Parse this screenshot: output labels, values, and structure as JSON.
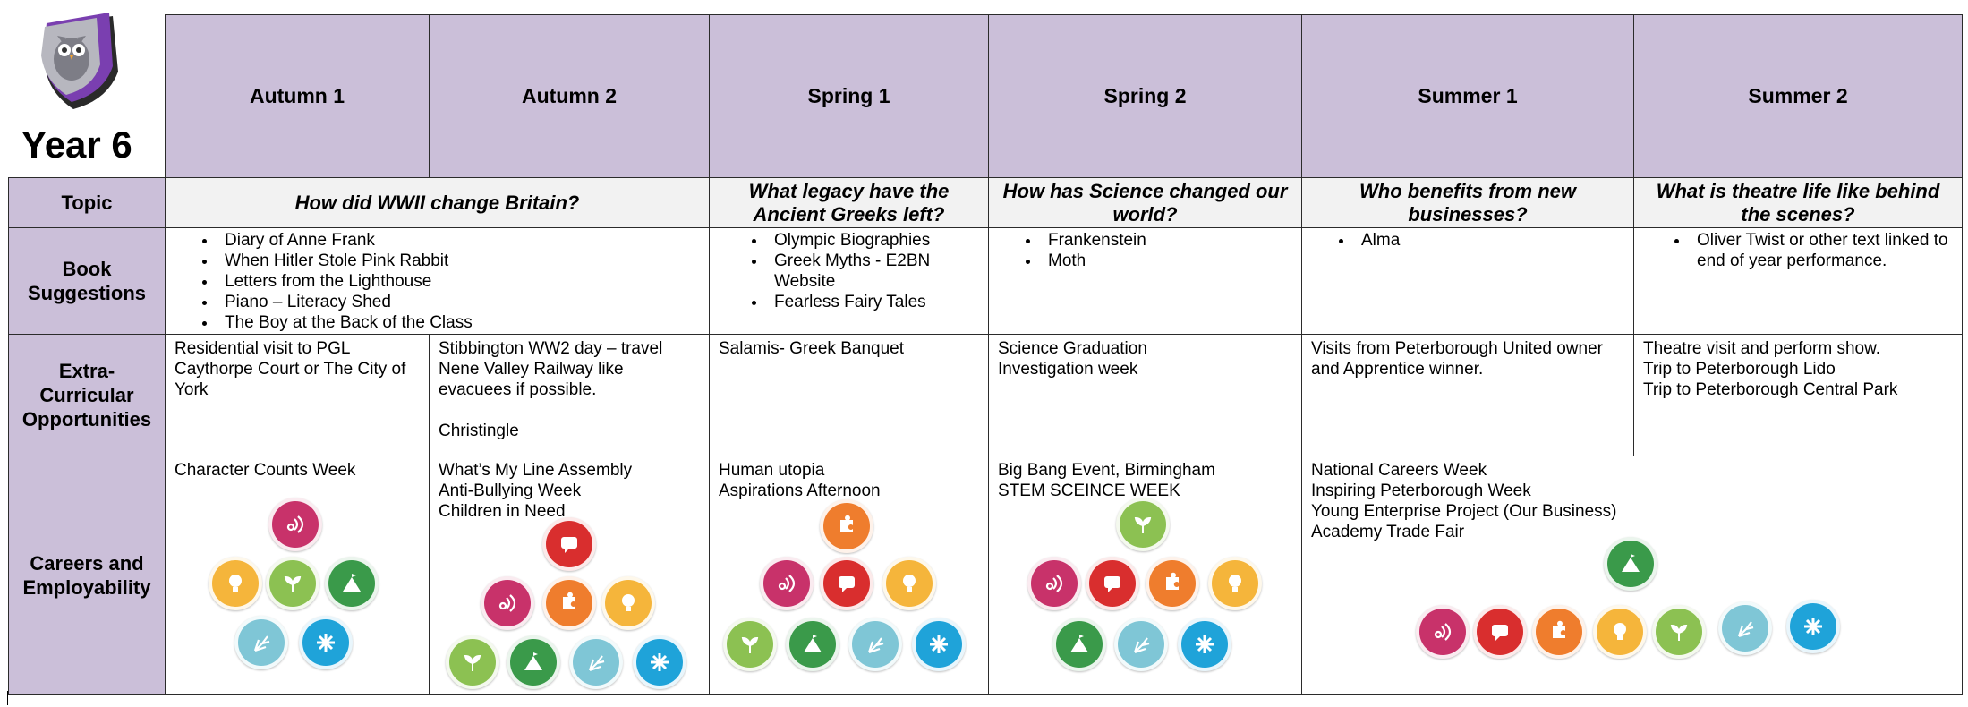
{
  "year_label": "Year 6",
  "terms": [
    "Autumn 1",
    "Autumn 2",
    "Spring 1",
    "Spring 2",
    "Summer 1",
    "Summer 2"
  ],
  "row_headers": {
    "topic": "Topic",
    "books": "Book\nSuggestions",
    "extra": "Extra-\nCurricular\nOpportunities",
    "careers": "Careers and\nEmployability"
  },
  "topics": {
    "autumn": "How did WWII change Britain?",
    "spring1": "What legacy have the Ancient Greeks left?",
    "spring2": "How has Science changed our world?",
    "summer1": "Who benefits from new businesses?",
    "summer2": "What is theatre life like behind the scenes?"
  },
  "books": {
    "autumn": [
      "Diary of Anne Frank",
      "When Hitler Stole Pink Rabbit",
      "Letters from the Lighthouse",
      "Piano – Literacy Shed",
      "The Boy at the Back of the Class"
    ],
    "spring1": [
      "Olympic Biographies",
      "Greek Myths - E2BN Website",
      "Fearless Fairy Tales"
    ],
    "spring2": [
      "Frankenstein",
      "Moth"
    ],
    "summer1": [
      "Alma"
    ],
    "summer2": [
      "Oliver Twist or other text linked to end of year performance."
    ]
  },
  "extra": {
    "autumn1": [
      "Residential visit to PGL Caythorpe Court or The City of York"
    ],
    "autumn2": [
      "Stibbington WW2 day – travel Nene Valley Railway like evacuees if possible.",
      "",
      "Christingle"
    ],
    "spring1": [
      "Salamis- Greek Banquet"
    ],
    "spring2": [
      "Science Graduation",
      "Investigation week"
    ],
    "summer1": [
      "Visits from Peterborough United owner and Apprentice winner."
    ],
    "summer2": [
      "Theatre visit and perform show.",
      "Trip to Peterborough Lido",
      "Trip to Peterborough Central Park"
    ]
  },
  "careers": {
    "autumn1": [
      "Character Counts Week"
    ],
    "autumn2": [
      "What’s My Line Assembly",
      "Anti-Bullying Week",
      "Children in Need"
    ],
    "spring1": [
      "Human utopia",
      "Aspirations Afternoon"
    ],
    "spring2": [
      "Big Bang Event, Birmingham",
      "STEM SCEINCE WEEK"
    ],
    "summer": [
      "National Careers Week",
      "Inspiring Peterborough Week",
      "Young Enterprise Project (Our Business)",
      "Academy Trade Fair"
    ]
  },
  "skill_colors": {
    "listening": "#c8326a",
    "speaking": "#d92e2e",
    "problem-solving": "#ef7d2d",
    "creativity": "#f5b53b",
    "staying-positive": "#8cc152",
    "aiming-high": "#3a9a4a",
    "leadership": "#7fc6d6",
    "teamwork": "#1fa3d9"
  },
  "header_color": "#cbbfd9",
  "topic_bg_color": "#f2f2f2"
}
